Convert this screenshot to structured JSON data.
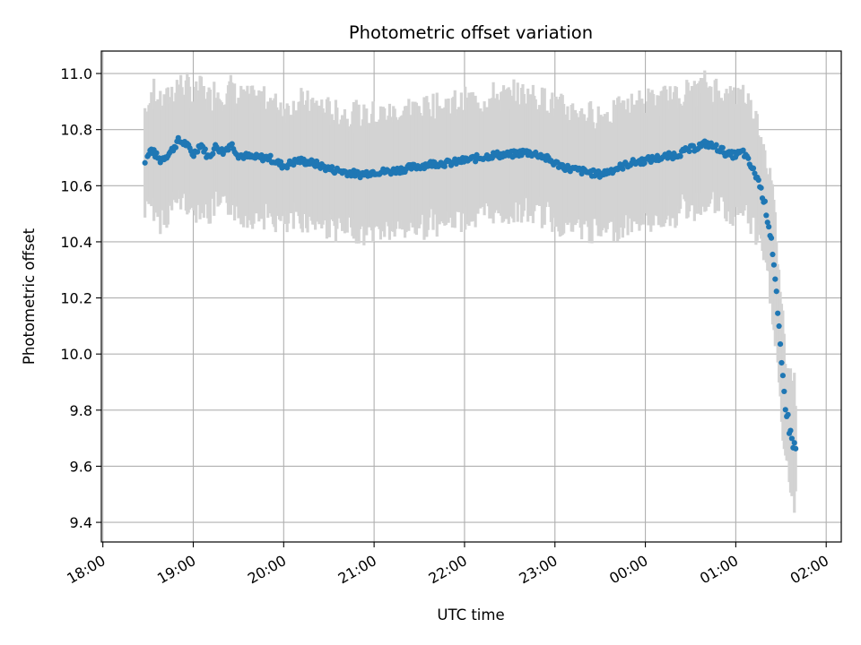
{
  "chart_data": {
    "type": "scatter",
    "title": "Photometric offset variation",
    "xlabel": "UTC time",
    "ylabel": "Photometric offset",
    "x_axis": {
      "kind": "time",
      "range_start": "17:59",
      "range_end": "02:10",
      "ticks": [
        "18:00",
        "19:00",
        "20:00",
        "21:00",
        "22:00",
        "23:00",
        "00:00",
        "01:00",
        "02:00"
      ],
      "tick_label_rotation_deg": 30
    },
    "y_axis": {
      "ylim": [
        9.33,
        11.08
      ],
      "ticks": [
        "9.4",
        "9.6",
        "9.8",
        "10.0",
        "10.2",
        "10.4",
        "10.6",
        "10.8",
        "11.0"
      ]
    },
    "grid": true,
    "colors": {
      "points": "#1f77b4",
      "error_bars": "#d3d3d3",
      "grid": "#b0b0b0"
    },
    "error_bar_half_width": 0.19,
    "series": [
      {
        "marker": "circle",
        "anchors": [
          {
            "t": "18:22",
            "y": 10.66
          },
          {
            "t": "18:24",
            "y": 10.63
          },
          {
            "t": "18:32",
            "y": 10.73
          },
          {
            "t": "18:38",
            "y": 10.69
          },
          {
            "t": "18:45",
            "y": 10.72
          },
          {
            "t": "18:50",
            "y": 10.76
          },
          {
            "t": "18:55",
            "y": 10.75
          },
          {
            "t": "19:00",
            "y": 10.71
          },
          {
            "t": "19:05",
            "y": 10.75
          },
          {
            "t": "19:10",
            "y": 10.7
          },
          {
            "t": "19:15",
            "y": 10.74
          },
          {
            "t": "19:20",
            "y": 10.72
          },
          {
            "t": "19:25",
            "y": 10.75
          },
          {
            "t": "19:30",
            "y": 10.71
          },
          {
            "t": "19:40",
            "y": 10.7
          },
          {
            "t": "19:50",
            "y": 10.7
          },
          {
            "t": "20:00",
            "y": 10.67
          },
          {
            "t": "20:10",
            "y": 10.69
          },
          {
            "t": "20:20",
            "y": 10.68
          },
          {
            "t": "20:30",
            "y": 10.66
          },
          {
            "t": "20:40",
            "y": 10.65
          },
          {
            "t": "20:50",
            "y": 10.64
          },
          {
            "t": "21:00",
            "y": 10.65
          },
          {
            "t": "21:10",
            "y": 10.65
          },
          {
            "t": "21:20",
            "y": 10.66
          },
          {
            "t": "21:30",
            "y": 10.67
          },
          {
            "t": "21:40",
            "y": 10.68
          },
          {
            "t": "21:50",
            "y": 10.68
          },
          {
            "t": "22:00",
            "y": 10.69
          },
          {
            "t": "22:10",
            "y": 10.7
          },
          {
            "t": "22:20",
            "y": 10.71
          },
          {
            "t": "22:30",
            "y": 10.71
          },
          {
            "t": "22:40",
            "y": 10.72
          },
          {
            "t": "22:50",
            "y": 10.71
          },
          {
            "t": "23:00",
            "y": 10.68
          },
          {
            "t": "23:10",
            "y": 10.66
          },
          {
            "t": "23:20",
            "y": 10.65
          },
          {
            "t": "23:30",
            "y": 10.64
          },
          {
            "t": "23:40",
            "y": 10.66
          },
          {
            "t": "23:50",
            "y": 10.68
          },
          {
            "t": "00:00",
            "y": 10.69
          },
          {
            "t": "00:10",
            "y": 10.7
          },
          {
            "t": "00:20",
            "y": 10.71
          },
          {
            "t": "00:30",
            "y": 10.73
          },
          {
            "t": "00:40",
            "y": 10.75
          },
          {
            "t": "00:45",
            "y": 10.74
          },
          {
            "t": "00:50",
            "y": 10.73
          },
          {
            "t": "00:55",
            "y": 10.71
          },
          {
            "t": "01:00",
            "y": 10.71
          },
          {
            "t": "01:05",
            "y": 10.72
          },
          {
            "t": "01:10",
            "y": 10.67
          },
          {
            "t": "01:15",
            "y": 10.62
          },
          {
            "t": "01:20",
            "y": 10.52
          },
          {
            "t": "01:24",
            "y": 10.4
          },
          {
            "t": "01:27",
            "y": 10.2
          },
          {
            "t": "01:30",
            "y": 9.98
          },
          {
            "t": "01:33",
            "y": 9.82
          },
          {
            "t": "01:36",
            "y": 9.72
          },
          {
            "t": "01:40",
            "y": 9.65
          }
        ]
      }
    ]
  }
}
